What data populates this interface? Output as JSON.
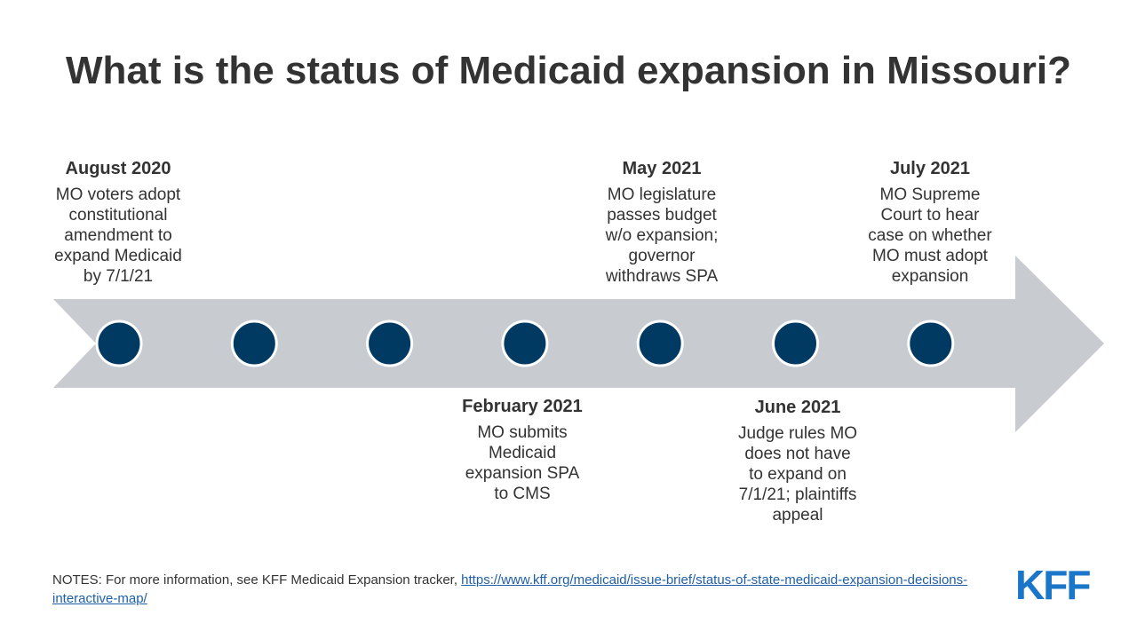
{
  "title": "What is the status of Medicaid expansion in Missouri?",
  "colors": {
    "arrow": "#c8cbd0",
    "node_fill": "#003a63",
    "node_stroke": "#ffffff",
    "link": "#1f5fa8",
    "logo": "#1a76c9"
  },
  "nodes_count": 7,
  "events": {
    "aug2020": {
      "date": "August 2020",
      "desc": "MO voters adopt\nconstitutional\namendment  to\nexpand Medicaid\nby 7/1/21"
    },
    "feb2021": {
      "date": "February 2021",
      "desc": "MO submits\nMedicaid\nexpansion SPA\nto CMS"
    },
    "may2021": {
      "date": "May 2021",
      "desc": "MO legislature\npasses budget\nw/o expansion;\ngovernor\nwithdraws SPA"
    },
    "jun2021": {
      "date": "June 2021",
      "desc": "Judge rules MO\ndoes not have\nto expand on\n7/1/21; plaintiffs\nappeal"
    },
    "jul2021": {
      "date": "July 2021",
      "desc": "MO Supreme\nCourt to hear\ncase on whether\nMO must adopt\nexpansion"
    }
  },
  "notes": {
    "prefix": "NOTES: For more information,  see KFF Medicaid Expansion tracker, ",
    "link": "https://www.kff.org/medicaid/issue-brief/status-of-state-medicaid-expansion-decisions-interactive-map/"
  },
  "logo": "KFF"
}
